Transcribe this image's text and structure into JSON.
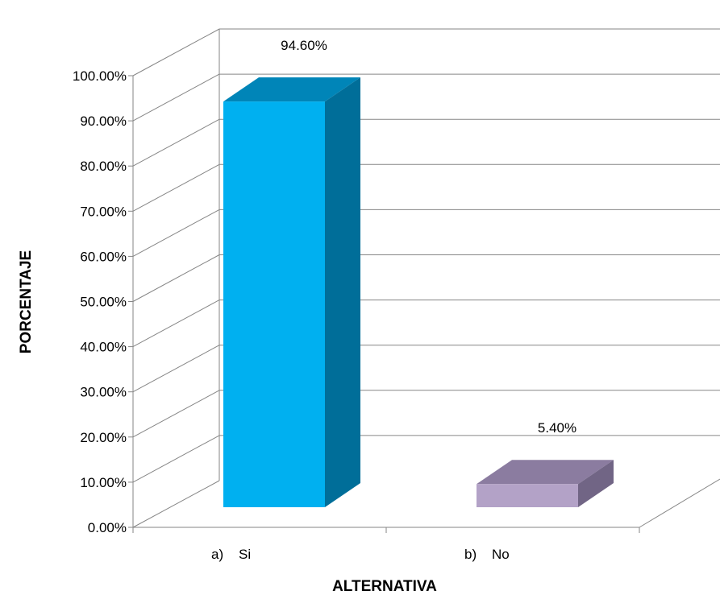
{
  "chart_data": {
    "type": "bar",
    "style": "3d-column",
    "categories": [
      "a)    Si",
      "b)    No"
    ],
    "values": [
      94.6,
      5.4
    ],
    "data_labels": [
      "94.60%",
      "5.40%"
    ],
    "xlabel": "ALTERNATIVA",
    "ylabel": "PORCENTAJE",
    "ylim": [
      0,
      100
    ],
    "y_ticks": [
      "0.00%",
      "10.00%",
      "20.00%",
      "30.00%",
      "40.00%",
      "50.00%",
      "60.00%",
      "70.00%",
      "80.00%",
      "90.00%",
      "100.00%"
    ],
    "grid": true,
    "legend": "none",
    "colors": [
      {
        "front": "#00B0F0",
        "top": "#0085B8",
        "side": "#006E99"
      },
      {
        "front": "#B3A2C7",
        "top": "#8B7CA0",
        "side": "#716585"
      }
    ],
    "grid_color": "#868686"
  }
}
